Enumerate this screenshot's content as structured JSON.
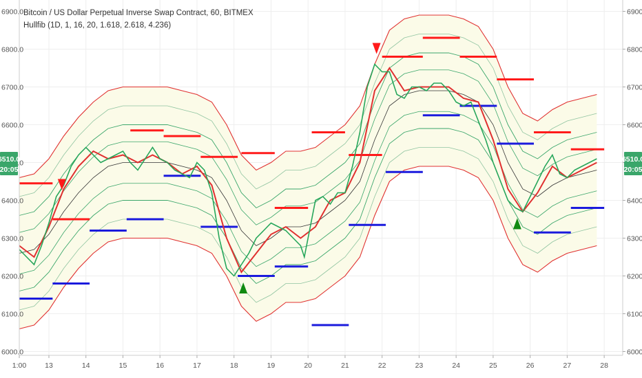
{
  "chart_data": {
    "type": "line",
    "title": "Bitcoin / US Dollar Perpetual Inverse Swap Contract, 60, BITMEX",
    "indicator_label": "Hullfib (1D, 1, 16, 20, 1.618, 2.618, 4.236)",
    "ylim": [
      5990,
      6930
    ],
    "xlim": [
      12.2,
      28.5
    ],
    "y_ticks": [
      {
        "v": 6900,
        "label": "6900.0"
      },
      {
        "v": 6800,
        "label": "6800.0"
      },
      {
        "v": 6700,
        "label": "6700.0"
      },
      {
        "v": 6600,
        "label": "6600.0"
      },
      {
        "v": 6500,
        "label": "6500.0"
      },
      {
        "v": 6400,
        "label": "6400.0"
      },
      {
        "v": 6300,
        "label": "6300.0"
      },
      {
        "v": 6200,
        "label": "6200.0"
      },
      {
        "v": 6100,
        "label": "6100.0"
      },
      {
        "v": 6000,
        "label": "6000.0"
      }
    ],
    "x_ticks": [
      {
        "v": 12.2,
        "label": "1:00"
      },
      {
        "v": 13,
        "label": "13"
      },
      {
        "v": 14,
        "label": "14"
      },
      {
        "v": 15,
        "label": "15"
      },
      {
        "v": 16,
        "label": "16"
      },
      {
        "v": 17,
        "label": "17"
      },
      {
        "v": 18,
        "label": "18"
      },
      {
        "v": 19,
        "label": "19"
      },
      {
        "v": 20,
        "label": "20"
      },
      {
        "v": 21,
        "label": "21"
      },
      {
        "v": 22,
        "label": "22"
      },
      {
        "v": 23,
        "label": "23"
      },
      {
        "v": 24,
        "label": "24"
      },
      {
        "v": 25,
        "label": "25"
      },
      {
        "v": 26,
        "label": "26"
      },
      {
        "v": 27,
        "label": "27"
      },
      {
        "v": 28,
        "label": "28"
      }
    ],
    "price_badge": {
      "value": 6510,
      "label": "6510.0",
      "countdown": "20:05",
      "color": "#3aa66a"
    },
    "grid": true,
    "colors": {
      "price": "#26a65b",
      "hull": "#e03030",
      "band_outer": "#e03030",
      "band_inner": "#3aa66a",
      "band_mid": "#333333",
      "fill": "#fbfbe8",
      "resistance": "#ff1a1a",
      "support": "#1a1add",
      "sell_marker": "#ff1a1a",
      "buy_marker": "#118a11"
    },
    "series": [
      {
        "key": "price",
        "x": [
          12.2,
          12.4,
          12.6,
          12.8,
          13.0,
          13.2,
          13.4,
          13.6,
          13.8,
          14.0,
          14.2,
          14.4,
          14.6,
          14.8,
          15.0,
          15.2,
          15.4,
          15.6,
          15.8,
          16.0,
          16.2,
          16.4,
          16.6,
          16.8,
          17.0,
          17.2,
          17.4,
          17.6,
          17.8,
          18.0,
          18.2,
          18.4,
          18.6,
          18.8,
          19.0,
          19.2,
          19.4,
          19.6,
          19.8,
          19.9,
          20.0,
          20.2,
          20.4,
          20.6,
          20.8,
          21.0,
          21.2,
          21.4,
          21.6,
          21.8,
          22.0,
          22.2,
          22.4,
          22.6,
          22.8,
          23.0,
          23.2,
          23.4,
          23.6,
          23.8,
          24.0,
          24.2,
          24.4,
          24.6,
          24.8,
          25.0,
          25.2,
          25.4,
          25.6,
          25.8,
          26.0,
          26.2,
          26.4,
          26.6,
          26.8,
          27.0,
          27.2,
          27.4,
          27.6,
          27.8
        ],
        "values": [
          6270,
          6250,
          6230,
          6280,
          6340,
          6410,
          6440,
          6490,
          6520,
          6540,
          6520,
          6500,
          6510,
          6520,
          6530,
          6500,
          6480,
          6510,
          6540,
          6510,
          6500,
          6480,
          6470,
          6460,
          6500,
          6480,
          6420,
          6300,
          6220,
          6200,
          6230,
          6260,
          6300,
          6320,
          6340,
          6330,
          6320,
          6300,
          6280,
          6250,
          6300,
          6400,
          6410,
          6390,
          6420,
          6420,
          6490,
          6580,
          6700,
          6760,
          6740,
          6740,
          6680,
          6670,
          6700,
          6700,
          6690,
          6710,
          6710,
          6690,
          6660,
          6650,
          6660,
          6610,
          6560,
          6500,
          6450,
          6400,
          6380,
          6370,
          6410,
          6450,
          6490,
          6520,
          6470,
          6460,
          6480,
          6490,
          6500,
          6510
        ]
      },
      {
        "key": "hull",
        "x": [
          12.2,
          12.6,
          13.0,
          13.4,
          13.8,
          14.2,
          14.6,
          15.0,
          15.4,
          15.8,
          16.2,
          16.6,
          17.0,
          17.4,
          17.8,
          18.2,
          18.6,
          19.0,
          19.4,
          19.8,
          20.2,
          20.6,
          21.0,
          21.4,
          21.8,
          22.2,
          22.6,
          23.0,
          23.4,
          23.8,
          24.2,
          24.6,
          25.0,
          25.4,
          25.8,
          26.2,
          26.6,
          27.0,
          27.4,
          27.8
        ],
        "values": [
          6280,
          6250,
          6330,
          6430,
          6490,
          6530,
          6510,
          6520,
          6500,
          6520,
          6500,
          6470,
          6490,
          6440,
          6300,
          6210,
          6260,
          6310,
          6330,
          6300,
          6330,
          6400,
          6420,
          6500,
          6690,
          6750,
          6690,
          6700,
          6700,
          6700,
          6670,
          6660,
          6560,
          6430,
          6370,
          6420,
          6490,
          6460,
          6480,
          6500
        ]
      },
      {
        "key": "mid",
        "x": [
          12.2,
          12.6,
          13.0,
          13.4,
          13.8,
          14.2,
          14.6,
          15.0,
          15.4,
          15.8,
          16.2,
          16.6,
          17.0,
          17.4,
          17.8,
          18.2,
          18.6,
          19.0,
          19.4,
          19.8,
          20.2,
          20.6,
          21.0,
          21.4,
          21.8,
          22.2,
          22.6,
          23.0,
          23.4,
          23.8,
          24.2,
          24.6,
          25.0,
          25.4,
          25.8,
          26.2,
          26.6,
          27.0,
          27.4,
          27.8
        ],
        "values": [
          6260,
          6270,
          6310,
          6370,
          6420,
          6460,
          6490,
          6500,
          6500,
          6500,
          6500,
          6490,
          6480,
          6460,
          6400,
          6320,
          6280,
          6300,
          6330,
          6330,
          6340,
          6370,
          6400,
          6450,
          6560,
          6650,
          6680,
          6690,
          6690,
          6690,
          6680,
          6660,
          6600,
          6500,
          6430,
          6410,
          6440,
          6460,
          6470,
          6480
        ]
      }
    ],
    "band_offsets": [
      {
        "key": "outer",
        "offset": 200,
        "color": "#e03030",
        "width": 1.1
      },
      {
        "key": "inner3",
        "offset": 150,
        "color": "#8fc4a0",
        "width": 0.8
      },
      {
        "key": "inner2",
        "offset": 100,
        "color": "#3aa66a",
        "width": 0.9
      },
      {
        "key": "inner1",
        "offset": 55,
        "color": "#3aa66a",
        "width": 0.8
      }
    ],
    "resistance_levels": [
      {
        "x0": 12.2,
        "x1": 13.1,
        "y": 6445
      },
      {
        "x0": 13.1,
        "x1": 14.1,
        "y": 6350
      },
      {
        "x0": 15.2,
        "x1": 16.1,
        "y": 6585
      },
      {
        "x0": 16.1,
        "x1": 17.1,
        "y": 6570
      },
      {
        "x0": 17.1,
        "x1": 18.1,
        "y": 6515
      },
      {
        "x0": 18.2,
        "x1": 19.1,
        "y": 6525
      },
      {
        "x0": 19.1,
        "x1": 20.0,
        "y": 6380
      },
      {
        "x0": 20.1,
        "x1": 21.0,
        "y": 6580
      },
      {
        "x0": 21.1,
        "x1": 22.0,
        "y": 6520
      },
      {
        "x0": 22.0,
        "x1": 23.1,
        "y": 6780
      },
      {
        "x0": 23.1,
        "x1": 24.1,
        "y": 6830
      },
      {
        "x0": 24.1,
        "x1": 25.1,
        "y": 6780
      },
      {
        "x0": 25.1,
        "x1": 26.1,
        "y": 6720
      },
      {
        "x0": 26.1,
        "x1": 27.1,
        "y": 6580
      },
      {
        "x0": 27.1,
        "x1": 28.0,
        "y": 6535
      }
    ],
    "support_levels": [
      {
        "x0": 12.2,
        "x1": 13.1,
        "y": 6140
      },
      {
        "x0": 13.1,
        "x1": 14.1,
        "y": 6180
      },
      {
        "x0": 14.1,
        "x1": 15.1,
        "y": 6320
      },
      {
        "x0": 15.1,
        "x1": 16.1,
        "y": 6350
      },
      {
        "x0": 16.1,
        "x1": 17.1,
        "y": 6465
      },
      {
        "x0": 17.1,
        "x1": 18.1,
        "y": 6330
      },
      {
        "x0": 18.1,
        "x1": 19.1,
        "y": 6200
      },
      {
        "x0": 19.1,
        "x1": 20.0,
        "y": 6225
      },
      {
        "x0": 20.1,
        "x1": 21.1,
        "y": 6070
      },
      {
        "x0": 21.1,
        "x1": 22.1,
        "y": 6335
      },
      {
        "x0": 22.1,
        "x1": 23.1,
        "y": 6475
      },
      {
        "x0": 23.1,
        "x1": 24.1,
        "y": 6625
      },
      {
        "x0": 24.1,
        "x1": 25.1,
        "y": 6650
      },
      {
        "x0": 25.1,
        "x1": 26.1,
        "y": 6550
      },
      {
        "x0": 26.1,
        "x1": 27.1,
        "y": 6315
      },
      {
        "x0": 27.1,
        "x1": 28.0,
        "y": 6380
      }
    ],
    "sell_signals": [
      {
        "x": 13.35,
        "y": 6440
      },
      {
        "x": 21.85,
        "y": 6800
      }
    ],
    "buy_signals": [
      {
        "x": 18.25,
        "y": 6170
      },
      {
        "x": 25.65,
        "y": 6340
      }
    ]
  }
}
